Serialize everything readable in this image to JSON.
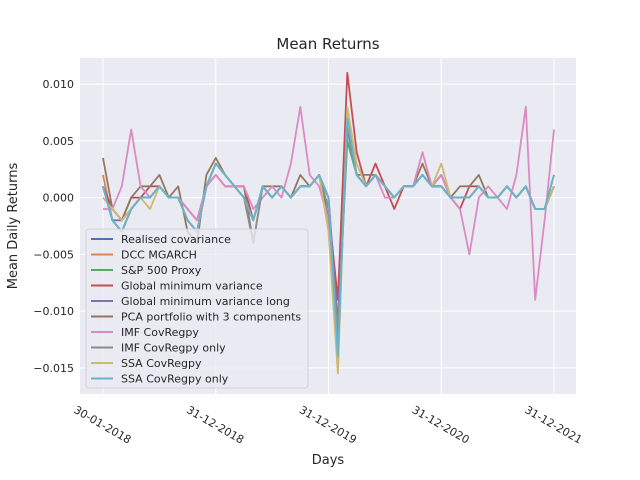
{
  "chart_data": {
    "type": "line",
    "title": "Mean Returns",
    "xlabel": "Days",
    "ylabel": "Mean Daily Returns",
    "x_ticks": [
      "30-01-2018",
      "31-12-2018",
      "31-12-2019",
      "31-12-2020",
      "31-12-2021"
    ],
    "y_ticks": [
      "0.010",
      "0.005",
      "0.000",
      "−0.005",
      "−0.010",
      "−0.015"
    ],
    "ylim": [
      -0.0173,
      0.0123
    ],
    "x": [
      "30-01-2018",
      "01-03-2018",
      "01-04-2018",
      "01-05-2018",
      "01-06-2018",
      "01-07-2018",
      "01-08-2018",
      "01-09-2018",
      "01-10-2018",
      "01-11-2018",
      "01-12-2018",
      "31-12-2018",
      "01-02-2019",
      "01-03-2019",
      "01-04-2019",
      "01-05-2019",
      "01-06-2019",
      "01-07-2019",
      "01-08-2019",
      "01-09-2019",
      "01-10-2019",
      "01-11-2019",
      "01-12-2019",
      "31-12-2019",
      "01-02-2020",
      "01-03-2020",
      "01-04-2020",
      "01-05-2020",
      "01-06-2020",
      "01-07-2020",
      "01-08-2020",
      "01-09-2020",
      "01-10-2020",
      "01-11-2020",
      "01-12-2020",
      "31-12-2020",
      "01-02-2021",
      "01-03-2021",
      "01-04-2021",
      "01-05-2021",
      "01-06-2021",
      "01-07-2021",
      "01-08-2021",
      "01-09-2021",
      "01-10-2021",
      "01-11-2021",
      "01-12-2021",
      "31-12-2021",
      "30-01-2022"
    ],
    "grid": true,
    "legend_position": "lower-left",
    "series": [
      {
        "name": "Realised covariance",
        "color": "#4c72b0",
        "values": [
          0.001,
          -0.002,
          -0.003,
          -0.001,
          0.0,
          0.0,
          0.001,
          0.0,
          0.0,
          -0.002,
          -0.003,
          0.001,
          0.003,
          0.002,
          0.001,
          0.0,
          -0.002,
          0.001,
          0.0,
          0.001,
          0.0,
          0.001,
          0.001,
          0.002,
          0.0,
          -0.012,
          0.006,
          0.002,
          0.001,
          0.002,
          0.001,
          0.0,
          0.001,
          0.001,
          0.002,
          0.001,
          0.001,
          0.0,
          0.0,
          0.0,
          0.001,
          0.0,
          0.0,
          0.001,
          0.0,
          0.001,
          -0.001,
          -0.001,
          0.001
        ]
      },
      {
        "name": "DCC MGARCH",
        "color": "#dd8452",
        "values": [
          0.002,
          -0.002,
          -0.003,
          -0.001,
          0.0,
          0.0,
          0.001,
          0.0,
          0.0,
          -0.002,
          -0.003,
          0.001,
          0.003,
          0.002,
          0.001,
          0.0,
          -0.002,
          0.001,
          0.0,
          0.001,
          0.0,
          0.001,
          0.001,
          0.002,
          0.0,
          -0.013,
          0.006,
          0.002,
          0.001,
          0.002,
          0.001,
          0.0,
          0.001,
          0.001,
          0.002,
          0.001,
          0.001,
          0.0,
          0.0,
          0.0,
          0.001,
          0.0,
          0.0,
          0.001,
          0.0,
          0.001,
          -0.001,
          -0.001,
          0.001
        ]
      },
      {
        "name": "S&P 500 Proxy",
        "color": "#55a868",
        "values": [
          0.001,
          -0.002,
          -0.003,
          -0.001,
          0.0,
          0.0,
          0.001,
          0.0,
          0.0,
          -0.002,
          -0.003,
          0.001,
          0.003,
          0.002,
          0.001,
          0.0,
          -0.002,
          0.001,
          0.0,
          0.001,
          0.0,
          0.001,
          0.001,
          0.002,
          -0.001,
          -0.012,
          0.005,
          0.002,
          0.001,
          0.002,
          0.001,
          0.0,
          0.001,
          0.001,
          0.002,
          0.001,
          0.001,
          0.0,
          0.0,
          0.0,
          0.001,
          0.0,
          0.0,
          0.001,
          0.0,
          0.001,
          -0.001,
          -0.001,
          0.001
        ]
      },
      {
        "name": "Global minimum variance",
        "color": "#c44e52",
        "values": [
          0.001,
          -0.001,
          -0.002,
          0.0,
          0.0,
          0.001,
          0.001,
          0.0,
          0.0,
          -0.001,
          -0.002,
          0.001,
          0.002,
          0.001,
          0.001,
          0.001,
          -0.002,
          0.001,
          0.0,
          0.001,
          0.0,
          0.001,
          0.001,
          0.002,
          -0.001,
          -0.009,
          0.011,
          0.004,
          0.001,
          0.003,
          0.001,
          -0.001,
          0.001,
          0.001,
          0.002,
          0.001,
          0.002,
          0.0,
          -0.001,
          0.001,
          0.001,
          0.0,
          0.0,
          0.001,
          0.0,
          0.001,
          -0.001,
          -0.001,
          0.001
        ]
      },
      {
        "name": "Global minimum variance long",
        "color": "#8172b3",
        "values": [
          0.001,
          -0.002,
          -0.002,
          -0.001,
          0.0,
          0.0,
          0.001,
          0.0,
          0.0,
          -0.002,
          -0.003,
          0.001,
          0.003,
          0.002,
          0.001,
          0.0,
          -0.002,
          0.001,
          0.0,
          0.001,
          0.0,
          0.001,
          0.001,
          0.002,
          0.0,
          -0.011,
          0.006,
          0.002,
          0.001,
          0.002,
          0.001,
          0.0,
          0.001,
          0.001,
          0.002,
          0.001,
          0.001,
          0.0,
          0.0,
          0.0,
          0.001,
          0.0,
          0.0,
          0.001,
          0.0,
          0.001,
          -0.001,
          -0.001,
          0.001
        ]
      },
      {
        "name": "PCA portfolio with 3 components",
        "color": "#937860",
        "values": [
          0.0035,
          -0.001,
          -0.002,
          0.0,
          0.001,
          0.001,
          0.002,
          0.0,
          0.001,
          -0.003,
          -0.004,
          0.002,
          0.0035,
          0.002,
          0.001,
          0.001,
          -0.004,
          0.001,
          0.001,
          0.001,
          0.0,
          0.002,
          0.001,
          0.002,
          -0.002,
          -0.013,
          0.007,
          0.002,
          0.002,
          0.002,
          0.001,
          0.0,
          0.001,
          0.001,
          0.003,
          0.001,
          0.002,
          0.0,
          0.001,
          0.001,
          0.002,
          0.0,
          0.0,
          0.001,
          0.0,
          0.001,
          -0.001,
          -0.001,
          0.002
        ]
      },
      {
        "name": "IMF CovRegpy",
        "color": "#da8bc3",
        "values": [
          -0.001,
          -0.001,
          0.001,
          0.006,
          0.001,
          0.0,
          0.001,
          0.0,
          0.0,
          -0.001,
          -0.002,
          0.001,
          0.002,
          0.001,
          0.001,
          0.001,
          -0.001,
          0.0,
          0.001,
          0.0,
          0.003,
          0.008,
          0.002,
          0.001,
          -0.002,
          -0.012,
          0.006,
          0.002,
          0.001,
          0.002,
          0.0,
          0.0,
          0.001,
          0.001,
          0.004,
          0.001,
          0.002,
          0.0,
          -0.001,
          -0.005,
          0.0,
          0.001,
          0.0,
          -0.001,
          0.002,
          0.008,
          -0.009,
          -0.002,
          0.006
        ]
      },
      {
        "name": "IMF CovRegpy only",
        "color": "#8c8c8c",
        "values": [
          0.001,
          -0.002,
          -0.003,
          -0.001,
          0.0,
          0.0,
          0.001,
          0.0,
          0.0,
          -0.002,
          -0.003,
          0.001,
          0.003,
          0.002,
          0.001,
          0.0,
          -0.004,
          0.001,
          0.0,
          0.001,
          0.0,
          0.001,
          0.001,
          0.002,
          -0.001,
          -0.012,
          0.006,
          0.002,
          0.001,
          0.002,
          0.001,
          0.0,
          0.001,
          0.001,
          0.002,
          0.001,
          0.001,
          0.0,
          0.0,
          0.0,
          0.001,
          0.0,
          0.0,
          0.001,
          0.0,
          0.001,
          -0.001,
          -0.001,
          0.001
        ]
      },
      {
        "name": "SSA CovRegpy",
        "color": "#ccb974",
        "values": [
          0.0,
          -0.001,
          -0.002,
          -0.001,
          0.0,
          -0.001,
          0.001,
          0.0,
          0.0,
          -0.002,
          -0.003,
          0.001,
          0.003,
          0.002,
          0.001,
          0.0,
          -0.002,
          0.001,
          0.0,
          0.001,
          0.0,
          0.001,
          0.001,
          0.002,
          -0.003,
          -0.0155,
          0.008,
          0.003,
          0.001,
          0.002,
          0.001,
          0.0,
          0.001,
          0.001,
          0.002,
          0.001,
          0.003,
          0.0,
          0.0,
          0.0,
          0.001,
          0.0,
          0.0,
          0.001,
          0.0,
          0.001,
          -0.001,
          -0.001,
          0.001
        ]
      },
      {
        "name": "SSA CovRegpy only",
        "color": "#64b5cd",
        "values": [
          0.001,
          -0.002,
          -0.003,
          -0.001,
          0.0,
          0.0,
          0.001,
          0.0,
          0.0,
          -0.002,
          -0.003,
          0.001,
          0.003,
          0.002,
          0.001,
          0.0,
          -0.002,
          0.001,
          0.0,
          0.001,
          0.0,
          0.001,
          0.001,
          0.002,
          0.0,
          -0.014,
          0.007,
          0.002,
          0.001,
          0.002,
          0.001,
          0.0,
          0.001,
          0.001,
          0.002,
          0.001,
          0.001,
          0.0,
          0.0,
          0.0,
          0.001,
          0.0,
          0.0,
          0.001,
          0.0,
          0.001,
          -0.001,
          -0.001,
          0.002
        ]
      }
    ]
  }
}
